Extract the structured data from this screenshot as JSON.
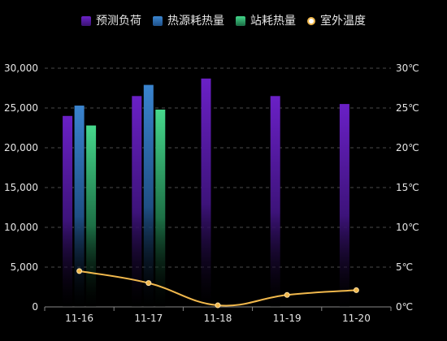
{
  "chart_data": {
    "type": "bar",
    "categories": [
      "11-16",
      "11-17",
      "11-18",
      "11-19",
      "11-20"
    ],
    "series": [
      {
        "name": "预测负荷",
        "kind": "bar",
        "axis": "left",
        "values": [
          24000,
          26500,
          28700,
          26500,
          25500
        ],
        "color": "#5a1aa6"
      },
      {
        "name": "热源耗热量",
        "kind": "bar",
        "axis": "left",
        "values": [
          25300,
          27900,
          null,
          null,
          null
        ],
        "color": "#2f73b6"
      },
      {
        "name": "站耗热量",
        "kind": "bar",
        "axis": "left",
        "values": [
          22800,
          24800,
          null,
          null,
          null
        ],
        "color": "#3cc47b"
      },
      {
        "name": "室外温度",
        "kind": "line",
        "axis": "right",
        "values": [
          4.5,
          3.0,
          0.2,
          1.5,
          2.1
        ],
        "color": "#f1b84c"
      }
    ],
    "y_left": {
      "min": 0,
      "max": 30000,
      "ticks": [
        "0",
        "5,000",
        "10,000",
        "15,000",
        "20,000",
        "25,000",
        "30,000"
      ]
    },
    "y_right": {
      "min": 0,
      "max": 30,
      "ticks": [
        "0℃",
        "5℃",
        "10℃",
        "15℃",
        "20℃",
        "25℃",
        "30℃"
      ]
    },
    "legend_position": "top-center",
    "grid": true
  }
}
